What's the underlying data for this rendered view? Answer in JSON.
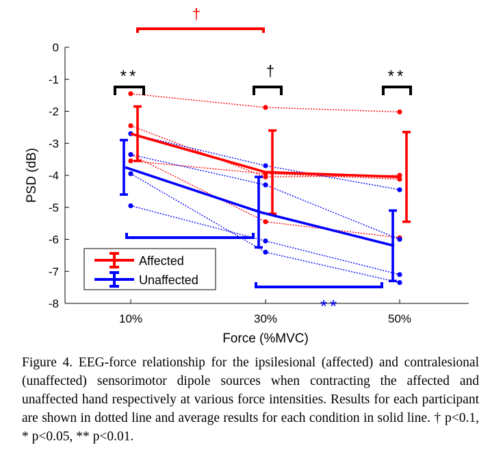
{
  "chart_data": {
    "type": "line",
    "xlabel": "Force (%MVC)",
    "ylabel": "PSD (dB)",
    "categories": [
      "10%",
      "30%",
      "50%"
    ],
    "ylim": [
      -8,
      0
    ],
    "yticks": [
      "0",
      "-1",
      "-2",
      "-3",
      "-4",
      "-5",
      "-6",
      "-7",
      "-8"
    ],
    "grid": false,
    "legend_position": "bottom-left",
    "series": [
      {
        "name": "Affected",
        "color": "#ff0000",
        "mean": [
          -2.7,
          -3.9,
          -4.05
        ],
        "error": [
          0.85,
          1.3,
          1.4
        ]
      },
      {
        "name": "Unaffected",
        "color": "#0000ff",
        "mean": [
          -3.75,
          -5.15,
          -6.2
        ],
        "error": [
          0.85,
          1.1,
          1.1
        ]
      }
    ],
    "participants": {
      "affected": [
        [
          -1.45,
          -1.88,
          -2.02
        ],
        [
          -2.45,
          -4.05,
          -4.0
        ],
        [
          -3.55,
          -3.95,
          -4.12
        ],
        [
          -3.35,
          -5.45,
          -5.95
        ]
      ],
      "unaffected": [
        [
          -2.7,
          -3.7,
          -4.45
        ],
        [
          -3.35,
          -4.3,
          -6.0
        ],
        [
          -3.95,
          -6.4,
          -7.35
        ],
        [
          -4.95,
          -6.05,
          -7.1
        ]
      ]
    },
    "annotations": {
      "dagger": "†",
      "double_star": "**",
      "single_star": "*"
    }
  },
  "caption": "Figure 4. EEG-force relationship for the ipsilesional (affected) and contralesional (unaffected) sensorimotor dipole sources when contracting the affected and unaffected hand respectively at various force intensities. Results for each participant are shown in dotted line and average results for each condition in solid line. † p<0.1, * p<0.05, ** p<0.01."
}
